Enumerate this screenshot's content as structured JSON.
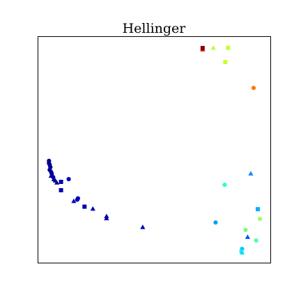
{
  "chart_data": {
    "type": "scatter",
    "title": "Hellinger",
    "xlabel": "",
    "ylabel": "",
    "xlim": [
      0,
      100
    ],
    "ylim": [
      0,
      100
    ],
    "grid": false,
    "ticks": false,
    "colormap": "jet",
    "marker_types": [
      "circle",
      "square",
      "triangle"
    ],
    "points": [
      {
        "x": 70.8,
        "y": 94.5,
        "marker": "triangle",
        "color": "#ee0000"
      },
      {
        "x": 70.8,
        "y": 95.1,
        "marker": "square",
        "color": "#880000"
      },
      {
        "x": 75.4,
        "y": 95.2,
        "marker": "triangle",
        "color": "#b8ff3c"
      },
      {
        "x": 81.8,
        "y": 95.2,
        "marker": "square",
        "color": "#c4ff33"
      },
      {
        "x": 80.6,
        "y": 88.9,
        "marker": "square",
        "color": "#c8ff30"
      },
      {
        "x": 92.8,
        "y": 77.4,
        "marker": "circle",
        "color": "#ff7a00"
      },
      {
        "x": 91.6,
        "y": 39.5,
        "marker": "triangle",
        "color": "#0a8cff"
      },
      {
        "x": 80.3,
        "y": 34.5,
        "marker": "circle",
        "color": "#2affd0"
      },
      {
        "x": 94.6,
        "y": 23.7,
        "marker": "square",
        "color": "#00b0ff"
      },
      {
        "x": 95.5,
        "y": 19.4,
        "marker": "circle",
        "color": "#9cff5a"
      },
      {
        "x": 76.4,
        "y": 17.8,
        "marker": "circle",
        "color": "#00a0ff"
      },
      {
        "x": 89.3,
        "y": 14.5,
        "marker": "circle",
        "color": "#7cff7a"
      },
      {
        "x": 90.2,
        "y": 11.4,
        "marker": "triangle",
        "color": "#0050ff"
      },
      {
        "x": 93.9,
        "y": 9.8,
        "marker": "circle",
        "color": "#50ffa8"
      },
      {
        "x": 87.8,
        "y": 6.1,
        "marker": "circle",
        "color": "#00c8ff"
      },
      {
        "x": 87.5,
        "y": 5.0,
        "marker": "circle",
        "color": "#20eaff"
      },
      {
        "x": 87.8,
        "y": 4.5,
        "marker": "triangle",
        "color": "#00e0f0"
      },
      {
        "x": 4.6,
        "y": 45.1,
        "marker": "circle",
        "color": "#00008f"
      },
      {
        "x": 4.6,
        "y": 44.1,
        "marker": "circle",
        "color": "#000090"
      },
      {
        "x": 4.9,
        "y": 43.4,
        "marker": "circle",
        "color": "#000091"
      },
      {
        "x": 5.2,
        "y": 42.3,
        "marker": "circle",
        "color": "#000092"
      },
      {
        "x": 4.9,
        "y": 41.1,
        "marker": "circle",
        "color": "#000093"
      },
      {
        "x": 5.5,
        "y": 40.2,
        "marker": "circle",
        "color": "#000094"
      },
      {
        "x": 5.8,
        "y": 39.4,
        "marker": "circle",
        "color": "#000095"
      },
      {
        "x": 5.5,
        "y": 38.5,
        "marker": "triangle",
        "color": "#000096"
      },
      {
        "x": 6.4,
        "y": 37.9,
        "marker": "circle",
        "color": "#000097"
      },
      {
        "x": 6.7,
        "y": 37.0,
        "marker": "triangle",
        "color": "#000098"
      },
      {
        "x": 7.3,
        "y": 36.4,
        "marker": "triangle",
        "color": "#000099"
      },
      {
        "x": 8.0,
        "y": 35.5,
        "marker": "triangle",
        "color": "#00009a"
      },
      {
        "x": 9.8,
        "y": 35.8,
        "marker": "square",
        "color": "#0000a0"
      },
      {
        "x": 13.1,
        "y": 37.0,
        "marker": "circle",
        "color": "#0000c8"
      },
      {
        "x": 9.8,
        "y": 32.1,
        "marker": "square",
        "color": "#0000a8"
      },
      {
        "x": 17.1,
        "y": 28.5,
        "marker": "circle",
        "color": "#0000c0"
      },
      {
        "x": 16.8,
        "y": 27.9,
        "marker": "circle",
        "color": "#0000b8"
      },
      {
        "x": 15.3,
        "y": 27.3,
        "marker": "triangle",
        "color": "#0000b0"
      },
      {
        "x": 19.9,
        "y": 24.8,
        "marker": "square",
        "color": "#0000a8"
      },
      {
        "x": 23.5,
        "y": 23.9,
        "marker": "triangle",
        "color": "#0000b2"
      },
      {
        "x": 29.4,
        "y": 20.6,
        "marker": "triangle",
        "color": "#0000b0"
      },
      {
        "x": 29.4,
        "y": 19.7,
        "marker": "triangle",
        "color": "#0000b4"
      },
      {
        "x": 45.0,
        "y": 15.8,
        "marker": "triangle",
        "color": "#0000b8"
      }
    ]
  }
}
